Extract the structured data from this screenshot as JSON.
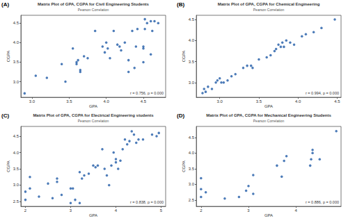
{
  "chart_data": [
    {
      "type": "scatter",
      "panel": "(A)",
      "title": "Matrix Plot of GPA, CGPA for Civil Engineering Students",
      "subtitle": "Pearson Correlation",
      "xlabel": "GPA",
      "ylabel": "CGPA",
      "annotation": "r = 0.756, p = 0.000",
      "color": "#1f5aa6",
      "marker": "circle",
      "grid": false,
      "xlim": [
        2.85,
        4.8
      ],
      "ylim": [
        2.6,
        4.7
      ],
      "xticks": [
        {
          "value": 3,
          "label": "3.0"
        },
        3.5,
        {
          "value": 4,
          "label": "4.0"
        },
        4.5
      ],
      "yticks": [
        {
          "value": 3,
          "label": "3.0"
        },
        3.5,
        {
          "value": 4,
          "label": "4.0"
        },
        4.5
      ],
      "x": [
        2.9,
        3.05,
        3.2,
        3.4,
        3.45,
        3.55,
        3.6,
        3.6,
        3.62,
        3.65,
        3.65,
        3.7,
        3.75,
        3.85,
        3.95,
        3.98,
        4.0,
        4.02,
        4.05,
        4.1,
        4.15,
        4.18,
        4.2,
        4.25,
        4.3,
        4.3,
        4.35,
        4.38,
        4.4,
        4.42,
        4.5,
        4.5,
        4.52,
        4.52,
        4.55,
        4.6,
        4.62,
        4.65,
        4.7,
        4.5,
        4.6
      ],
      "values": [
        2.7,
        3.15,
        3.1,
        3.45,
        3.0,
        3.85,
        3.5,
        3.45,
        3.55,
        3.3,
        3.25,
        3.65,
        3.6,
        4.3,
        3.9,
        3.75,
        4.0,
        3.85,
        3.6,
        4.3,
        3.95,
        3.9,
        3.8,
        4.0,
        3.55,
        3.25,
        4.3,
        3.35,
        3.9,
        4.35,
        3.9,
        3.85,
        4.35,
        4.6,
        4.5,
        4.55,
        4.3,
        4.55,
        4.5,
        3.5,
        3.7
      ]
    },
    {
      "type": "scatter",
      "panel": "(B)",
      "title": "Matrix Plot of GPA, CGPA for Chemical Engineering",
      "subtitle": "Pearson Correlation",
      "xlabel": "GPA",
      "ylabel": "CGPA",
      "annotation": "r = 0.994, p = 0.000",
      "color": "#1f5aa6",
      "marker": "circle",
      "grid": false,
      "xlim": [
        2.7,
        4.55
      ],
      "ylim": [
        2.65,
        4.6
      ],
      "xticks": [
        {
          "value": 3,
          "label": "3.0"
        },
        3.5,
        {
          "value": 4,
          "label": "4.0"
        },
        4.5
      ],
      "yticks": [
        {
          "value": 3,
          "label": "3.0"
        },
        3.5,
        {
          "value": 4,
          "label": "4.0"
        },
        4.5
      ],
      "x": [
        2.78,
        2.8,
        2.82,
        2.85,
        2.9,
        2.95,
        2.97,
        3.0,
        3.02,
        3.05,
        3.1,
        3.15,
        3.2,
        3.3,
        3.35,
        3.4,
        3.42,
        3.5,
        3.6,
        3.65,
        3.7,
        3.72,
        3.75,
        3.78,
        3.8,
        3.82,
        3.85,
        3.9,
        3.95,
        4.05,
        4.1,
        4.2,
        4.3,
        4.47
      ],
      "values": [
        2.75,
        2.85,
        2.78,
        2.9,
        2.85,
        3.0,
        3.05,
        3.1,
        3.0,
        3.0,
        3.05,
        3.15,
        3.2,
        3.35,
        3.4,
        3.4,
        3.35,
        3.55,
        3.6,
        3.65,
        3.75,
        3.8,
        3.9,
        3.85,
        3.95,
        3.85,
        4.0,
        3.95,
        3.9,
        4.1,
        4.15,
        4.2,
        4.3,
        4.5
      ]
    },
    {
      "type": "scatter",
      "panel": "(C)",
      "title": "Matrix Plot of GPA, CGPA for Electrical Engineering students",
      "subtitle": "Pearson Correlation",
      "xlabel": "GPA",
      "ylabel": "CGPA",
      "annotation": "r = 0.838, p = 0.000",
      "color": "#1f5aa6",
      "marker": "circle",
      "grid": false,
      "xlim": [
        1.9,
        5.1
      ],
      "ylim": [
        2.35,
        4.8
      ],
      "xticks": [
        2,
        3,
        4,
        5
      ],
      "yticks": [
        2.5,
        {
          "value": 3,
          "label": "3.0"
        },
        3.5,
        {
          "value": 4,
          "label": "4.0"
        },
        4.5
      ],
      "x": [
        2.0,
        2.0,
        2.1,
        2.1,
        2.3,
        2.5,
        2.6,
        2.7,
        2.7,
        2.8,
        3.0,
        3.05,
        3.1,
        3.2,
        3.25,
        3.3,
        3.4,
        3.5,
        3.55,
        3.6,
        3.7,
        3.75,
        3.8,
        3.85,
        3.9,
        3.95,
        4.0,
        4.0,
        4.05,
        4.1,
        4.15,
        4.2,
        4.25,
        4.3,
        4.35,
        4.4,
        4.45,
        4.5,
        4.6,
        4.8,
        4.9,
        4.95,
        3.0,
        3.2
      ],
      "values": [
        2.55,
        2.8,
        3.25,
        2.9,
        2.65,
        3.05,
        2.6,
        3.1,
        3.2,
        2.7,
        2.9,
        2.9,
        2.55,
        3.4,
        3.2,
        3.3,
        3.35,
        3.6,
        3.55,
        3.6,
        4.1,
        3.5,
        3.3,
        3.0,
        3.6,
        4.0,
        3.8,
        3.7,
        3.5,
        3.75,
        4.1,
        4.4,
        4.25,
        4.35,
        4.65,
        4.55,
        4.3,
        4.4,
        4.4,
        4.55,
        4.5,
        4.6,
        2.45,
        2.45
      ]
    },
    {
      "type": "scatter",
      "panel": "(D)",
      "title": "Matrix Plot of GPA, CGPA for Mechanical Engineering Students",
      "subtitle": "Pearson Correlation",
      "xlabel": "GPA",
      "ylabel": "CGPA",
      "annotation": "r = 0.886, p = 0.000",
      "color": "#1f5aa6",
      "marker": "circle",
      "grid": false,
      "xlim": [
        1.9,
        4.95
      ],
      "ylim": [
        2.3,
        4.85
      ],
      "xticks": [
        2,
        3,
        4
      ],
      "yticks": [
        2.5,
        {
          "value": 3,
          "label": "3.0"
        },
        3.5,
        {
          "value": 4,
          "label": "4.0"
        },
        4.5
      ],
      "x": [
        2.0,
        2.0,
        2.0,
        2.1,
        2.5,
        2.8,
        2.95,
        3.0,
        3.1,
        3.1,
        3.6,
        3.7,
        3.75,
        3.8,
        4.3,
        4.32,
        4.35,
        4.35,
        4.5,
        4.85
      ],
      "values": [
        2.6,
        2.85,
        3.2,
        2.75,
        2.55,
        2.6,
        2.8,
        2.95,
        2.7,
        3.3,
        3.6,
        3.25,
        3.75,
        3.9,
        3.6,
        3.8,
        4.1,
        4.0,
        3.8,
        4.7
      ]
    }
  ]
}
